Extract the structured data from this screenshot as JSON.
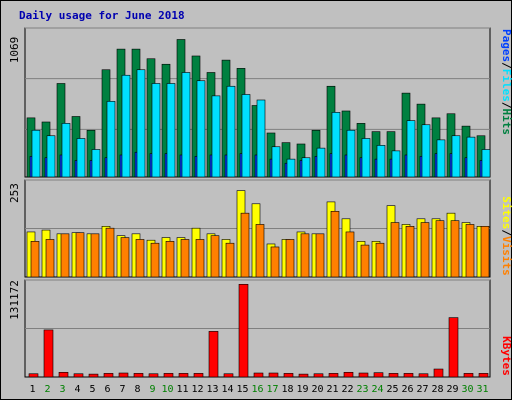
{
  "title": "Daily usage for June 2018",
  "colors": {
    "page_bg": "#c0c0c0",
    "plot_bg": "#c0c0c0",
    "frame_dark": "#808080",
    "grid": "#808080",
    "title": "#0000b0",
    "hits": "#008040",
    "files": "#00e0ff",
    "pages": "#0040ff",
    "visits": "#ff8000",
    "sites": "#ffff00",
    "kbytes": "#ff0000",
    "weekday_label": "#000000",
    "weekend_label": "#008000"
  },
  "right_labels": {
    "pages": "Pages",
    "files": "Files",
    "hits": "Hits",
    "sep": "/",
    "sites": "Sites",
    "visits": "Visits",
    "kbytes": "KBytes"
  },
  "chart_data": [
    {
      "type": "bar",
      "panel": "top",
      "ymax_label": "1069",
      "ylim": [
        0,
        1069
      ],
      "x": [
        "1",
        "2",
        "3",
        "4",
        "5",
        "6",
        "7",
        "8",
        "9",
        "10",
        "11",
        "12",
        "13",
        "14",
        "15",
        "16",
        "17",
        "18",
        "19",
        "20",
        "21",
        "22",
        "23",
        "24",
        "25",
        "26",
        "27",
        "28",
        "29",
        "30",
        "31"
      ],
      "series": [
        {
          "name": "Hits",
          "values": [
            430,
            400,
            680,
            440,
            340,
            780,
            930,
            930,
            860,
            820,
            1000,
            880,
            760,
            850,
            790,
            520,
            320,
            250,
            240,
            340,
            660,
            480,
            390,
            330,
            330,
            610,
            530,
            430,
            460,
            370,
            300
          ]
        },
        {
          "name": "Files",
          "values": [
            340,
            300,
            390,
            280,
            200,
            550,
            740,
            780,
            680,
            680,
            760,
            700,
            590,
            660,
            600,
            560,
            220,
            130,
            140,
            210,
            470,
            340,
            280,
            230,
            190,
            410,
            380,
            270,
            300,
            290,
            200
          ]
        },
        {
          "name": "Pages",
          "values": [
            150,
            140,
            160,
            120,
            120,
            140,
            160,
            180,
            170,
            170,
            160,
            150,
            160,
            160,
            170,
            160,
            130,
            100,
            120,
            150,
            170,
            160,
            140,
            130,
            130,
            160,
            150,
            170,
            170,
            140,
            120
          ]
        }
      ]
    },
    {
      "type": "bar",
      "panel": "middle",
      "ymax_label": "253",
      "ylim": [
        0,
        253
      ],
      "x": [
        "1",
        "2",
        "3",
        "4",
        "5",
        "6",
        "7",
        "8",
        "9",
        "10",
        "11",
        "12",
        "13",
        "14",
        "15",
        "16",
        "17",
        "18",
        "19",
        "20",
        "21",
        "22",
        "23",
        "24",
        "25",
        "26",
        "27",
        "28",
        "29",
        "30",
        "31"
      ],
      "series": [
        {
          "name": "Sites",
          "values": [
            120,
            125,
            115,
            118,
            115,
            135,
            110,
            115,
            98,
            105,
            105,
            130,
            115,
            100,
            230,
            195,
            88,
            100,
            120,
            115,
            200,
            155,
            95,
            95,
            190,
            140,
            155,
            155,
            170,
            145,
            135
          ]
        },
        {
          "name": "Visits",
          "values": [
            95,
            100,
            115,
            118,
            115,
            130,
            105,
            100,
            90,
            95,
            100,
            100,
            110,
            90,
            170,
            140,
            80,
            100,
            115,
            115,
            175,
            120,
            85,
            90,
            145,
            135,
            145,
            150,
            150,
            140,
            135
          ]
        }
      ]
    },
    {
      "type": "bar",
      "panel": "bottom",
      "ymax_label": "131172",
      "ylim": [
        0,
        131172
      ],
      "x": [
        "1",
        "2",
        "3",
        "4",
        "5",
        "6",
        "7",
        "8",
        "9",
        "10",
        "11",
        "12",
        "13",
        "14",
        "15",
        "16",
        "17",
        "18",
        "19",
        "20",
        "21",
        "22",
        "23",
        "24",
        "25",
        "26",
        "27",
        "28",
        "29",
        "30",
        "31"
      ],
      "series": [
        {
          "name": "KBytes",
          "values": [
            4500,
            65000,
            6500,
            4500,
            4000,
            5000,
            5500,
            5000,
            4500,
            5000,
            5000,
            5000,
            63000,
            4500,
            128000,
            5500,
            5500,
            5000,
            4000,
            4500,
            5000,
            6500,
            5500,
            6000,
            5000,
            5000,
            4500,
            11000,
            82000,
            5000,
            5000
          ]
        }
      ]
    }
  ],
  "weekend_days": [
    2,
    3,
    9,
    10,
    16,
    17,
    23,
    24,
    30,
    31
  ]
}
